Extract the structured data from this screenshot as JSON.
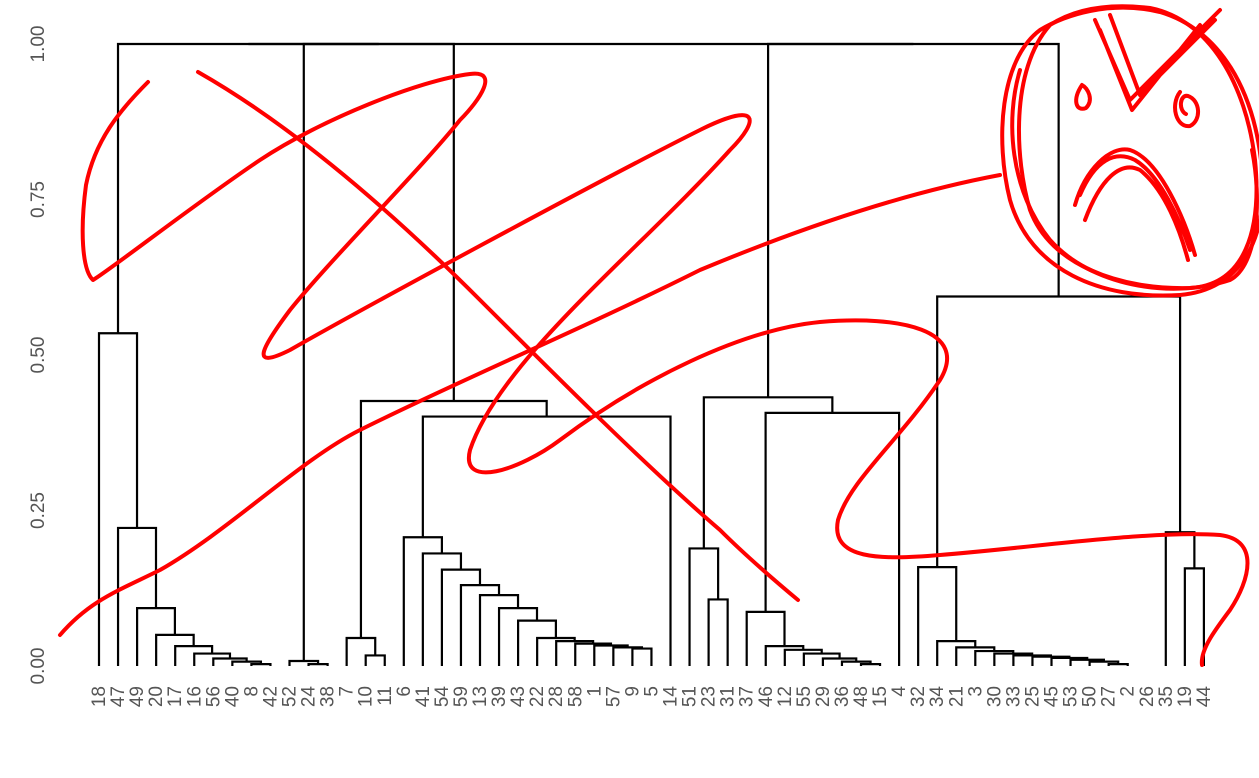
{
  "chart_data": {
    "type": "dendrogram",
    "title": "",
    "xlabel": "",
    "ylabel": "",
    "ylim": [
      0,
      1.0
    ],
    "yticks": [
      0,
      0.25,
      0.5,
      0.75,
      1.0
    ],
    "ytick_labels": [
      "0.00",
      "0.25",
      "0.50",
      "0.75",
      "1.00"
    ],
    "leaves": [
      "18",
      "47",
      "49",
      "20",
      "17",
      "16",
      "56",
      "40",
      "8",
      "42",
      "52",
      "24",
      "38",
      "7",
      "10",
      "11",
      "6",
      "41",
      "54",
      "59",
      "13",
      "39",
      "43",
      "22",
      "28",
      "58",
      "1",
      "57",
      "9",
      "5",
      "14",
      "51",
      "23",
      "31",
      "37",
      "46",
      "12",
      "55",
      "29",
      "36",
      "48",
      "15",
      "4",
      "32",
      "34",
      "21",
      "3",
      "30",
      "33",
      "25",
      "45",
      "53",
      "50",
      "27",
      "2",
      "26",
      "35",
      "19",
      "44"
    ],
    "merges": [
      {
        "left": 8,
        "right": 9,
        "height": 0.003
      },
      {
        "left": 7,
        "right": "m0",
        "height": 0.007
      },
      {
        "left": 6,
        "right": "m1",
        "height": 0.012
      },
      {
        "left": 5,
        "right": "m2",
        "height": 0.02
      },
      {
        "left": 4,
        "right": "m3",
        "height": 0.032
      },
      {
        "left": 3,
        "right": "m4",
        "height": 0.05
      },
      {
        "left": 2,
        "right": "m5",
        "height": 0.093
      },
      {
        "left": 1,
        "right": "m6",
        "height": 0.222
      },
      {
        "left": 0,
        "right": "m7",
        "height": 0.535
      },
      {
        "left": 11,
        "right": 12,
        "height": 0.003
      },
      {
        "left": 10,
        "right": "m9",
        "height": 0.008
      },
      {
        "left": 14,
        "right": 15,
        "height": 0.017
      },
      {
        "left": 13,
        "right": "m11",
        "height": 0.045
      },
      {
        "left": 28,
        "right": 29,
        "height": 0.028
      },
      {
        "left": 27,
        "right": "m13",
        "height": 0.03
      },
      {
        "left": 26,
        "right": "m14",
        "height": 0.033
      },
      {
        "left": 25,
        "right": "m15",
        "height": 0.036
      },
      {
        "left": 24,
        "right": "m16",
        "height": 0.04
      },
      {
        "left": 23,
        "right": "m17",
        "height": 0.045
      },
      {
        "left": 22,
        "right": "m18",
        "height": 0.073
      },
      {
        "left": 21,
        "right": "m19",
        "height": 0.093
      },
      {
        "left": 20,
        "right": "m20",
        "height": 0.114
      },
      {
        "left": 19,
        "right": "m21",
        "height": 0.13
      },
      {
        "left": 18,
        "right": "m22",
        "height": 0.155
      },
      {
        "left": 17,
        "right": "m23",
        "height": 0.181
      },
      {
        "left": 16,
        "right": "m24",
        "height": 0.207
      },
      {
        "left": 30,
        "right": "m25",
        "height": 0.401
      },
      {
        "left": "m12",
        "right": "m26",
        "height": 0.426
      },
      {
        "left": "m10",
        "right": "m27",
        "height": 1.0
      },
      {
        "left": "m8",
        "right": "m28",
        "height": 1.0
      },
      {
        "left": 32,
        "right": 33,
        "height": 0.107
      },
      {
        "left": 31,
        "right": "m30",
        "height": 0.189
      },
      {
        "left": 40,
        "right": 41,
        "height": 0.003
      },
      {
        "left": 39,
        "right": "m32",
        "height": 0.007
      },
      {
        "left": 38,
        "right": "m33",
        "height": 0.012
      },
      {
        "left": 37,
        "right": "m34",
        "height": 0.02
      },
      {
        "left": 36,
        "right": "m35",
        "height": 0.026
      },
      {
        "left": 35,
        "right": "m36",
        "height": 0.032
      },
      {
        "left": 34,
        "right": "m37",
        "height": 0.087
      },
      {
        "left": 42,
        "right": "m38",
        "height": 0.407
      },
      {
        "left": "m31",
        "right": "m39",
        "height": 0.432
      },
      {
        "left": 53,
        "right": 54,
        "height": 0.003
      },
      {
        "left": 52,
        "right": "m41",
        "height": 0.007
      },
      {
        "left": 51,
        "right": "m42",
        "height": 0.01
      },
      {
        "left": 50,
        "right": "m43",
        "height": 0.013
      },
      {
        "left": 49,
        "right": "m44",
        "height": 0.015
      },
      {
        "left": 48,
        "right": "m45",
        "height": 0.017
      },
      {
        "left": 47,
        "right": "m46",
        "height": 0.02
      },
      {
        "left": 46,
        "right": "m47",
        "height": 0.024
      },
      {
        "left": 45,
        "right": "m48",
        "height": 0.03
      },
      {
        "left": 44,
        "right": "m49",
        "height": 0.04
      },
      {
        "left": 43,
        "right": "m50",
        "height": 0.159
      },
      {
        "left": 57,
        "right": 58,
        "height": 0.157
      },
      {
        "left": 56,
        "right": "m52",
        "height": 0.215
      },
      {
        "left": "m51",
        "right": "m53",
        "height": 0.594
      },
      {
        "left": "m40",
        "right": "m54",
        "height": 1.0
      },
      {
        "left": "m29",
        "right": "m55",
        "height": 1.0
      }
    ]
  },
  "annotations": {
    "scribble_color": "#ff0000",
    "line_color": "#000000",
    "text_color": "#555555"
  }
}
